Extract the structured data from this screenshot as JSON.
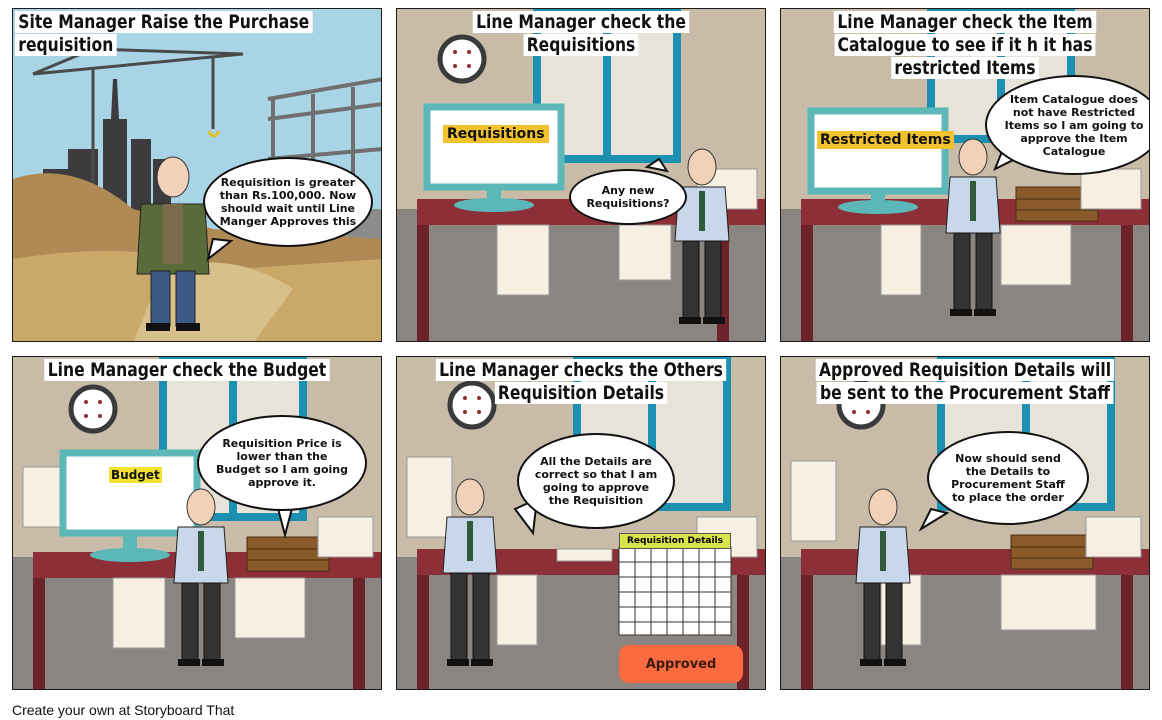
{
  "panels": [
    {
      "title": "Site Manager Raise the Purchase requisition",
      "bubble": "Requisition is greater than Rs.100,000. Now should wait until Line Manger Approves this"
    },
    {
      "title": "Line Manager check the Requisitions",
      "screen_label": "Requisitions",
      "bubble": "Any  new Requisitions?"
    },
    {
      "title": "Line Manager check the Item Catalogue to see if it h it has restricted Items",
      "screen_label": "Restricted Items",
      "bubble": "Item Catalogue does not have Restricted Items so I am going to approve the Item Catalogue"
    },
    {
      "title": "Line Manager check the Budget",
      "screen_label": "Budget",
      "bubble": "Requisition Price is lower than the Budget so I am going approve it."
    },
    {
      "title": "Line Manager checks the Others Requisition Details",
      "table_header": "Requisition Details",
      "button": "Approved",
      "bubble": "All the Details are correct so that I am going to approve the Requisition"
    },
    {
      "title": "Approved Requisition Details will be sent to the Procurement Staff",
      "bubble": "Now should send the Details to Procurement Staff to place the order"
    }
  ],
  "footer": "Create your own at Storyboard That",
  "colors": {
    "wall": "#c8bca8",
    "floor": "#8a8580",
    "desk": "#8c2f36",
    "monitor_frame": "#5cb8b8",
    "window_frame": "#1d8fb1",
    "label_highlight": "#f2c12e",
    "approved_button": "#fb6b3f",
    "sky": "#a8d4e6"
  }
}
